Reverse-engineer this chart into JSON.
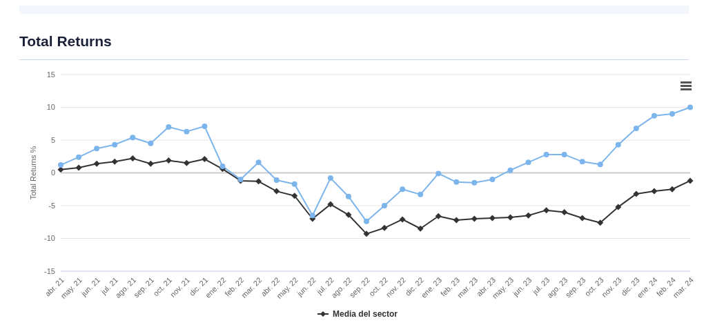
{
  "chart_data": {
    "type": "line",
    "title": "Total Returns",
    "ylabel": "Total Returns %",
    "categories": [
      "abr. 21",
      "may. 21",
      "jun. 21",
      "jul. 21",
      "ago. 21",
      "sep. 21",
      "oct. 21",
      "nov. 21",
      "dic. 21",
      "ene. 22",
      "feb. 22",
      "mar. 22",
      "abr. 22",
      "may. 22",
      "jun. 22",
      "jul. 22",
      "ago. 22",
      "sep. 22",
      "oct. 22",
      "nov. 22",
      "dic. 22",
      "ene. 23",
      "feb. 23",
      "mar. 23",
      "abr. 23",
      "may. 23",
      "jun. 23",
      "jul. 23",
      "ago. 23",
      "sep. 23",
      "oct. 23",
      "nov. 23",
      "dic. 23",
      "ene. 24",
      "feb. 24",
      "mar. 24"
    ],
    "series": [
      {
        "color": "#7cb5ec",
        "marker": "circle",
        "values": [
          1.2,
          2.4,
          3.7,
          4.3,
          5.4,
          4.5,
          7.0,
          6.3,
          7.1,
          1.0,
          -1.0,
          1.6,
          -1.1,
          -1.7,
          -6.5,
          -0.8,
          -3.6,
          -7.4,
          -5.0,
          -2.5,
          -3.3,
          -0.1,
          -1.4,
          -1.5,
          -1.0,
          0.4,
          1.6,
          2.8,
          2.8,
          1.7,
          1.3,
          4.3,
          6.8,
          8.7,
          9.0,
          10.0
        ]
      },
      {
        "name": "Media del sector",
        "color": "#333333",
        "marker": "diamond",
        "values": [
          0.5,
          0.8,
          1.4,
          1.7,
          2.2,
          1.4,
          1.9,
          1.5,
          2.1,
          0.6,
          -1.2,
          -1.3,
          -2.8,
          -3.5,
          -7.0,
          -4.8,
          -6.4,
          -9.3,
          -8.4,
          -7.1,
          -8.5,
          -6.6,
          -7.2,
          -7.0,
          -6.9,
          -6.8,
          -6.5,
          -5.7,
          -6.0,
          -6.9,
          -7.6,
          -5.2,
          -3.2,
          -2.8,
          -2.5,
          -1.2
        ]
      }
    ],
    "ylim": [
      -15,
      15
    ],
    "yticks": [
      -15,
      -10,
      -5,
      0,
      5,
      10,
      15
    ],
    "grid": "y",
    "legend": "bottom",
    "ref_lines": [
      {
        "axis": "y",
        "value": 0,
        "color": "#cccccc"
      }
    ]
  }
}
